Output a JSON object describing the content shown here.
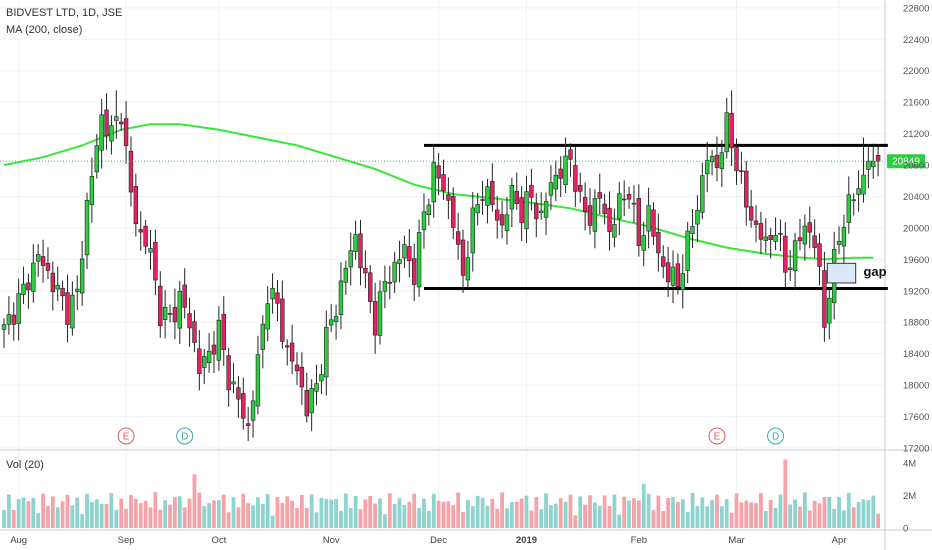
{
  "header": {
    "symbol_line": "BIDVEST LTD, 1D, JSE",
    "ma_line": "MA (200, close)",
    "volume_pane_label": "Vol (20)"
  },
  "colors": {
    "up": "#2ecc40",
    "down": "#e0245e",
    "ma": "#39e639",
    "vol_up": "#8fd3cf",
    "vol_down": "#f4a3a8",
    "price_badge": "#2ecc40",
    "earnings_marker": "#e05a5a",
    "dividend_marker": "#3aa9a9",
    "gap_box": "#dbe8fb"
  },
  "annotations": {
    "gap_label": "gap",
    "event_markers": [
      {
        "letter": "E",
        "date_index": 25,
        "kind": "earnings"
      },
      {
        "letter": "D",
        "date_index": 37,
        "kind": "dividend"
      },
      {
        "letter": "E",
        "date_index": 146,
        "kind": "earnings"
      },
      {
        "letter": "D",
        "date_index": 158,
        "kind": "dividend"
      }
    ],
    "current_price_label": "20849",
    "channel": {
      "upper": 21050,
      "lower": 19230,
      "start_index": 86,
      "end_index": 181
    }
  },
  "chart_data": {
    "type": "candlestick",
    "title": "BIDVEST LTD, 1D, JSE",
    "indicator": "MA (200, close)",
    "ylim": [
      17200,
      22900
    ],
    "y_ticks": [
      17200,
      17600,
      18000,
      18400,
      18800,
      19200,
      19600,
      20000,
      20400,
      20800,
      21200,
      21600,
      22000,
      22400,
      22800
    ],
    "x_ticks": [
      {
        "label": "Aug",
        "index": 3
      },
      {
        "label": "Sep",
        "index": 25
      },
      {
        "label": "Oct",
        "index": 44
      },
      {
        "label": "Nov",
        "index": 67
      },
      {
        "label": "Dec",
        "index": 89
      },
      {
        "label": "2019",
        "index": 107
      },
      {
        "label": "Feb",
        "index": 130
      },
      {
        "label": "Mar",
        "index": 150
      },
      {
        "label": "Apr",
        "index": 171
      }
    ],
    "volume_ticks": [
      "4M",
      "2M",
      "0"
    ],
    "volume_max": 4300000,
    "anchors": [
      [
        0,
        18700
      ],
      [
        4,
        19200
      ],
      [
        7,
        19650
      ],
      [
        10,
        19300
      ],
      [
        13,
        18950
      ],
      [
        15,
        19150
      ],
      [
        17,
        20300
      ],
      [
        20,
        21400
      ],
      [
        22,
        21200
      ],
      [
        24,
        21500
      ],
      [
        26,
        20400
      ],
      [
        28,
        19900
      ],
      [
        30,
        19700
      ],
      [
        32,
        18900
      ],
      [
        34,
        18850
      ],
      [
        36,
        19100
      ],
      [
        38,
        18800
      ],
      [
        40,
        18200
      ],
      [
        42,
        18400
      ],
      [
        44,
        18700
      ],
      [
        46,
        18100
      ],
      [
        48,
        17800
      ],
      [
        50,
        17450
      ],
      [
        52,
        18300
      ],
      [
        54,
        19200
      ],
      [
        56,
        19000
      ],
      [
        58,
        18400
      ],
      [
        60,
        18200
      ],
      [
        62,
        17700
      ],
      [
        64,
        18000
      ],
      [
        66,
        18600
      ],
      [
        68,
        19000
      ],
      [
        70,
        19500
      ],
      [
        72,
        19900
      ],
      [
        74,
        19300
      ],
      [
        76,
        18800
      ],
      [
        78,
        19300
      ],
      [
        80,
        19500
      ],
      [
        82,
        19750
      ],
      [
        84,
        19400
      ],
      [
        86,
        20200
      ],
      [
        88,
        20700
      ],
      [
        90,
        20550
      ],
      [
        92,
        20050
      ],
      [
        94,
        19400
      ],
      [
        96,
        20100
      ],
      [
        98,
        20500
      ],
      [
        100,
        20300
      ],
      [
        102,
        20000
      ],
      [
        104,
        20450
      ],
      [
        106,
        20200
      ],
      [
        108,
        20400
      ],
      [
        110,
        20100
      ],
      [
        112,
        20600
      ],
      [
        114,
        20700
      ],
      [
        116,
        20900
      ],
      [
        118,
        20300
      ],
      [
        120,
        20150
      ],
      [
        122,
        20400
      ],
      [
        124,
        19950
      ],
      [
        126,
        20300
      ],
      [
        128,
        20500
      ],
      [
        130,
        19800
      ],
      [
        132,
        20200
      ],
      [
        134,
        19650
      ],
      [
        136,
        19400
      ],
      [
        138,
        19300
      ],
      [
        140,
        19800
      ],
      [
        142,
        20300
      ],
      [
        144,
        20900
      ],
      [
        146,
        20800
      ],
      [
        148,
        21300
      ],
      [
        150,
        20850
      ],
      [
        152,
        20300
      ],
      [
        154,
        20000
      ],
      [
        156,
        19800
      ],
      [
        158,
        20000
      ],
      [
        160,
        19500
      ],
      [
        162,
        19700
      ],
      [
        164,
        20050
      ],
      [
        166,
        19800
      ],
      [
        167,
        19400
      ],
      [
        168,
        18800
      ],
      [
        169,
        19200
      ],
      [
        171,
        19900
      ],
      [
        173,
        20300
      ],
      [
        175,
        20500
      ],
      [
        177,
        20850
      ]
    ],
    "ma_points": [
      [
        0,
        20800
      ],
      [
        8,
        20900
      ],
      [
        16,
        21050
      ],
      [
        24,
        21250
      ],
      [
        30,
        21320
      ],
      [
        36,
        21320
      ],
      [
        44,
        21250
      ],
      [
        52,
        21150
      ],
      [
        60,
        21050
      ],
      [
        68,
        20900
      ],
      [
        76,
        20750
      ],
      [
        84,
        20550
      ],
      [
        92,
        20430
      ],
      [
        100,
        20380
      ],
      [
        108,
        20320
      ],
      [
        116,
        20250
      ],
      [
        124,
        20130
      ],
      [
        132,
        20020
      ],
      [
        140,
        19870
      ],
      [
        148,
        19750
      ],
      [
        156,
        19670
      ],
      [
        162,
        19630
      ],
      [
        168,
        19600
      ],
      [
        174,
        19620
      ],
      [
        178,
        19620
      ]
    ],
    "spikes": [
      {
        "index": 23,
        "high": 21750
      },
      {
        "index": 149,
        "high": 21750
      },
      {
        "index": 168,
        "low": 18550
      },
      {
        "index": 176,
        "high": 21150
      }
    ],
    "volume_spikes": [
      {
        "index": 39,
        "value": 3300000
      },
      {
        "index": 160,
        "value": 4200000
      },
      {
        "index": 131,
        "value": 2700000
      }
    ]
  }
}
